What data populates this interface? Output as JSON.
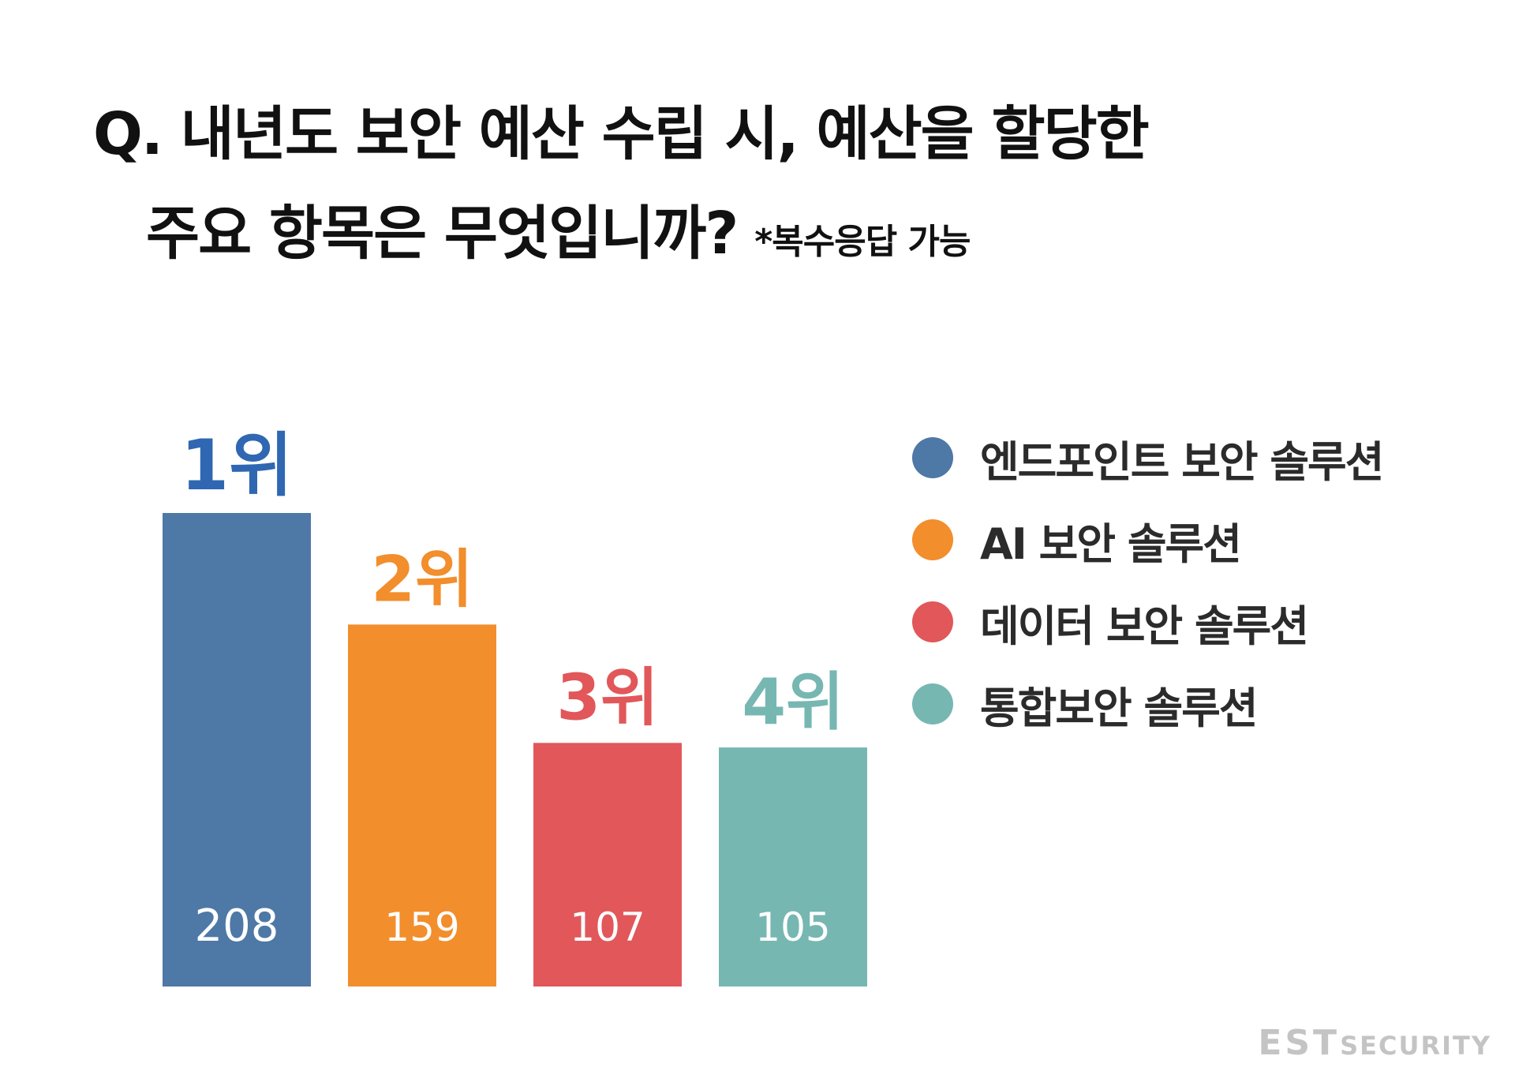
{
  "question": {
    "line1": "Q. 내년도 보안 예산 수립 시, 예산을 할당한",
    "line2": "주요 항목은 무엇입니까?",
    "note": "*복수응답 가능"
  },
  "chart_data": {
    "type": "bar",
    "categories": [
      "엔드포인트 보안 솔루션",
      "AI 보안 솔루션",
      "데이터 보안 솔루션",
      "통합보안 솔루션"
    ],
    "values": [
      208,
      159,
      107,
      105
    ],
    "ranks": [
      "1위",
      "2위",
      "3위",
      "4위"
    ],
    "colors": [
      "#4e78a6",
      "#f28e2c",
      "#e1575a",
      "#76b7b2"
    ],
    "title": "",
    "xlabel": "",
    "ylabel": "",
    "ylim": [
      0,
      208
    ],
    "grid": false,
    "legend_position": "right"
  },
  "legend": [
    {
      "label": "엔드포인트 보안 솔루션",
      "color": "#4e78a6"
    },
    {
      "label": "AI 보안 솔루션",
      "color": "#f28e2c"
    },
    {
      "label": "데이터 보안 솔루션",
      "color": "#e1575a"
    },
    {
      "label": "통합보안 솔루션",
      "color": "#76b7b2"
    }
  ],
  "logo": {
    "main": "EST",
    "sub": "SECURITY"
  }
}
